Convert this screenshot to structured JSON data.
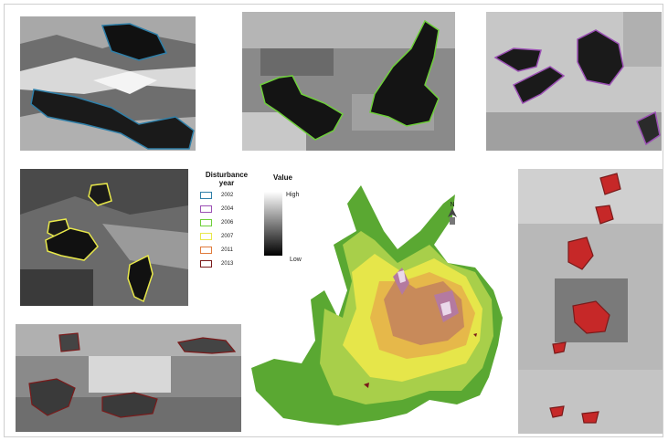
{
  "legend": {
    "title": "Disturbance year",
    "items": [
      {
        "label": "2002",
        "color": "#2f7fa8"
      },
      {
        "label": "2004",
        "color": "#9b4fb4"
      },
      {
        "label": "2006",
        "color": "#6ecf3a"
      },
      {
        "label": "2007",
        "color": "#e8e84a"
      },
      {
        "label": "2011",
        "color": "#e07a3a"
      },
      {
        "label": "2013",
        "color": "#7a1a1a"
      }
    ]
  },
  "value_legend": {
    "title": "Value",
    "high": "High",
    "low": "Low"
  },
  "north_arrow": {
    "label": "N"
  },
  "panels": [
    {
      "id": "panel-2002",
      "year": "2002",
      "outline_color": "#2f7fa8"
    },
    {
      "id": "panel-2006",
      "year": "2006",
      "outline_color": "#6ecf3a"
    },
    {
      "id": "panel-2004",
      "year": "2004",
      "outline_color": "#9b4fb4"
    },
    {
      "id": "panel-2007",
      "year": "2007",
      "outline_color": "#e8e84a"
    },
    {
      "id": "panel-2011",
      "year": "2011",
      "outline_color": "#e07a3a"
    },
    {
      "id": "panel-2013",
      "year": "2013",
      "outline_color": "#7a1a1a"
    }
  ],
  "elevation_palette": [
    "#5aa832",
    "#a8cf4a",
    "#e6e64a",
    "#e6b84a",
    "#c88a5a",
    "#b47aa0",
    "#ead8ea"
  ]
}
